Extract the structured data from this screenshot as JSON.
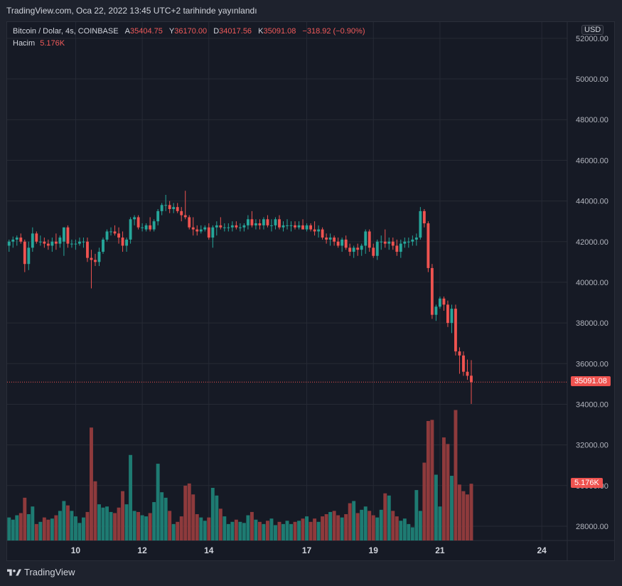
{
  "header": {
    "published": "TradingView.com, Oca 22, 2022 13:45 UTC+2 tarihinde yayınlandı"
  },
  "legend": {
    "symbol": "Bitcoin / Dolar, 4s, COINBASE",
    "open_label": "A",
    "open_value": "35404.75",
    "high_label": "Y",
    "high_value": "36170.00",
    "low_label": "D",
    "low_value": "34017.56",
    "close_label": "K",
    "close_value": "35091.08",
    "change": "−318.92 (−0.90%)",
    "volume_label": "Hacim",
    "volume_value": "5.176K"
  },
  "price_axis": {
    "currency": "USD",
    "last_price_label": "35091.08",
    "last_volume_label": "5.176K"
  },
  "footer": {
    "brand": "TradingView"
  },
  "colors": {
    "up": "#26a69a",
    "down": "#ef5350",
    "up_volume": "#1e7b72",
    "down_volume": "#8e3a3c",
    "background": "#161a25",
    "grid": "#262a35",
    "axis_text": "#b2b5be"
  },
  "chart_data": {
    "type": "candlestick",
    "symbol": "BTC/USD",
    "timeframe": "4s",
    "y_ticks": [
      "28000.00",
      "30000.00",
      "32000.00",
      "34000.00",
      "36000.00",
      "38000.00",
      "40000.00",
      "42000.00",
      "44000.00",
      "46000.00",
      "48000.00",
      "50000.00",
      "52000.00"
    ],
    "ylim": [
      27300,
      52800
    ],
    "x_ticks": [
      {
        "label": "10",
        "bar": 17
      },
      {
        "label": "12",
        "bar": 34
      },
      {
        "label": "14",
        "bar": 51
      },
      {
        "label": "17",
        "bar": 76
      },
      {
        "label": "19",
        "bar": 93
      },
      {
        "label": "21",
        "bar": 110
      },
      {
        "label": "24",
        "bar": 136
      }
    ],
    "total_bar_slots": 143,
    "last_price": 35091.08,
    "volume_max": 12000,
    "candles": [
      {
        "o": 41800,
        "h": 42100,
        "l": 41500,
        "c": 42000,
        "v": 2100
      },
      {
        "o": 42000,
        "h": 42250,
        "l": 41700,
        "c": 42100,
        "v": 1900
      },
      {
        "o": 42100,
        "h": 42300,
        "l": 41800,
        "c": 42200,
        "v": 2300
      },
      {
        "o": 42200,
        "h": 42400,
        "l": 41900,
        "c": 42000,
        "v": 2500
      },
      {
        "o": 42000,
        "h": 42100,
        "l": 40500,
        "c": 40900,
        "v": 3900
      },
      {
        "o": 40900,
        "h": 42000,
        "l": 40600,
        "c": 41700,
        "v": 2400
      },
      {
        "o": 41700,
        "h": 42700,
        "l": 41500,
        "c": 42400,
        "v": 3100
      },
      {
        "o": 42400,
        "h": 42500,
        "l": 41900,
        "c": 42000,
        "v": 1500
      },
      {
        "o": 42000,
        "h": 42300,
        "l": 41800,
        "c": 42000,
        "v": 1700
      },
      {
        "o": 42000,
        "h": 42200,
        "l": 41700,
        "c": 41900,
        "v": 2100
      },
      {
        "o": 41900,
        "h": 42100,
        "l": 41600,
        "c": 41800,
        "v": 1900
      },
      {
        "o": 41800,
        "h": 42200,
        "l": 41500,
        "c": 42000,
        "v": 2000
      },
      {
        "o": 42000,
        "h": 42400,
        "l": 41600,
        "c": 41900,
        "v": 2300
      },
      {
        "o": 41900,
        "h": 42300,
        "l": 41700,
        "c": 42200,
        "v": 2700
      },
      {
        "o": 42000,
        "h": 42700,
        "l": 41300,
        "c": 42700,
        "v": 3600
      },
      {
        "o": 42700,
        "h": 42800,
        "l": 41700,
        "c": 41900,
        "v": 3200
      },
      {
        "o": 41900,
        "h": 42100,
        "l": 41700,
        "c": 41900,
        "v": 2700
      },
      {
        "o": 41900,
        "h": 42100,
        "l": 41600,
        "c": 41900,
        "v": 2200
      },
      {
        "o": 41900,
        "h": 42200,
        "l": 41800,
        "c": 42000,
        "v": 1600
      },
      {
        "o": 42000,
        "h": 42200,
        "l": 41700,
        "c": 42000,
        "v": 2100
      },
      {
        "o": 42000,
        "h": 42200,
        "l": 41000,
        "c": 41200,
        "v": 2600
      },
      {
        "o": 41200,
        "h": 41600,
        "l": 39700,
        "c": 41100,
        "v": 10300
      },
      {
        "o": 41100,
        "h": 41400,
        "l": 40800,
        "c": 41000,
        "v": 5400
      },
      {
        "o": 41000,
        "h": 41700,
        "l": 40800,
        "c": 41500,
        "v": 3300
      },
      {
        "o": 41500,
        "h": 42200,
        "l": 41400,
        "c": 42100,
        "v": 3000
      },
      {
        "o": 42100,
        "h": 42600,
        "l": 42000,
        "c": 42500,
        "v": 3100
      },
      {
        "o": 42500,
        "h": 42700,
        "l": 42300,
        "c": 42500,
        "v": 2600
      },
      {
        "o": 42500,
        "h": 42800,
        "l": 42300,
        "c": 42400,
        "v": 2500
      },
      {
        "o": 42400,
        "h": 42700,
        "l": 41900,
        "c": 42200,
        "v": 3000
      },
      {
        "o": 42200,
        "h": 42500,
        "l": 41500,
        "c": 41800,
        "v": 4500
      },
      {
        "o": 41800,
        "h": 42200,
        "l": 41500,
        "c": 42100,
        "v": 3300
      },
      {
        "o": 42100,
        "h": 43200,
        "l": 41900,
        "c": 43100,
        "v": 7800
      },
      {
        "o": 43100,
        "h": 43300,
        "l": 42800,
        "c": 43200,
        "v": 2700
      },
      {
        "o": 43200,
        "h": 43300,
        "l": 42600,
        "c": 42700,
        "v": 2600
      },
      {
        "o": 42700,
        "h": 42900,
        "l": 42500,
        "c": 42700,
        "v": 2300
      },
      {
        "o": 42600,
        "h": 42900,
        "l": 42500,
        "c": 42800,
        "v": 2200
      },
      {
        "o": 42800,
        "h": 43200,
        "l": 42500,
        "c": 42600,
        "v": 2500
      },
      {
        "o": 42600,
        "h": 43100,
        "l": 42500,
        "c": 43000,
        "v": 3500
      },
      {
        "o": 43000,
        "h": 43600,
        "l": 42800,
        "c": 43500,
        "v": 7000
      },
      {
        "o": 43500,
        "h": 43900,
        "l": 43300,
        "c": 43800,
        "v": 4400
      },
      {
        "o": 43800,
        "h": 44300,
        "l": 43500,
        "c": 43800,
        "v": 3900
      },
      {
        "o": 43800,
        "h": 44000,
        "l": 43400,
        "c": 43600,
        "v": 2700
      },
      {
        "o": 43600,
        "h": 43900,
        "l": 43400,
        "c": 43700,
        "v": 1500
      },
      {
        "o": 43700,
        "h": 43900,
        "l": 43400,
        "c": 43500,
        "v": 1700
      },
      {
        "o": 43500,
        "h": 43700,
        "l": 43000,
        "c": 43300,
        "v": 2200
      },
      {
        "o": 43300,
        "h": 44500,
        "l": 43100,
        "c": 43200,
        "v": 5000
      },
      {
        "o": 43200,
        "h": 43300,
        "l": 42600,
        "c": 42700,
        "v": 5200
      },
      {
        "o": 42700,
        "h": 43200,
        "l": 42300,
        "c": 42600,
        "v": 4200
      },
      {
        "o": 42600,
        "h": 42800,
        "l": 42300,
        "c": 42500,
        "v": 2400
      },
      {
        "o": 42500,
        "h": 42800,
        "l": 42400,
        "c": 42600,
        "v": 2100
      },
      {
        "o": 42600,
        "h": 42800,
        "l": 42500,
        "c": 42700,
        "v": 1800
      },
      {
        "o": 42700,
        "h": 42900,
        "l": 42100,
        "c": 42200,
        "v": 2100
      },
      {
        "o": 42200,
        "h": 42800,
        "l": 41700,
        "c": 42700,
        "v": 4800
      },
      {
        "o": 42700,
        "h": 43000,
        "l": 42300,
        "c": 42800,
        "v": 4100
      },
      {
        "o": 42800,
        "h": 43200,
        "l": 42600,
        "c": 42700,
        "v": 2900
      },
      {
        "o": 42700,
        "h": 42900,
        "l": 42500,
        "c": 42700,
        "v": 2200
      },
      {
        "o": 42700,
        "h": 42900,
        "l": 42500,
        "c": 42700,
        "v": 1500
      },
      {
        "o": 42700,
        "h": 43000,
        "l": 42500,
        "c": 42800,
        "v": 1700
      },
      {
        "o": 42800,
        "h": 43000,
        "l": 42600,
        "c": 42700,
        "v": 1900
      },
      {
        "o": 42700,
        "h": 42900,
        "l": 42500,
        "c": 42700,
        "v": 1700
      },
      {
        "o": 42700,
        "h": 42900,
        "l": 42500,
        "c": 42800,
        "v": 1600
      },
      {
        "o": 42800,
        "h": 43300,
        "l": 42600,
        "c": 43100,
        "v": 2300
      },
      {
        "o": 43100,
        "h": 43500,
        "l": 42700,
        "c": 42800,
        "v": 2600
      },
      {
        "o": 42800,
        "h": 43100,
        "l": 42600,
        "c": 42900,
        "v": 1900
      },
      {
        "o": 42900,
        "h": 43100,
        "l": 42600,
        "c": 42800,
        "v": 1700
      },
      {
        "o": 42800,
        "h": 43200,
        "l": 42600,
        "c": 43100,
        "v": 1500
      },
      {
        "o": 43100,
        "h": 43300,
        "l": 42700,
        "c": 42800,
        "v": 1800
      },
      {
        "o": 42800,
        "h": 43100,
        "l": 42500,
        "c": 42800,
        "v": 2000
      },
      {
        "o": 42800,
        "h": 43200,
        "l": 42600,
        "c": 43100,
        "v": 1400
      },
      {
        "o": 43100,
        "h": 43300,
        "l": 42600,
        "c": 42700,
        "v": 1700
      },
      {
        "o": 42700,
        "h": 43000,
        "l": 42500,
        "c": 42800,
        "v": 1500
      },
      {
        "o": 42800,
        "h": 43100,
        "l": 42600,
        "c": 42800,
        "v": 1800
      },
      {
        "o": 42800,
        "h": 43000,
        "l": 42500,
        "c": 42800,
        "v": 1500
      },
      {
        "o": 42800,
        "h": 43000,
        "l": 42600,
        "c": 42700,
        "v": 1700
      },
      {
        "o": 42700,
        "h": 43000,
        "l": 42600,
        "c": 42800,
        "v": 1800
      },
      {
        "o": 42800,
        "h": 43100,
        "l": 42600,
        "c": 42600,
        "v": 2000
      },
      {
        "o": 42600,
        "h": 42900,
        "l": 42500,
        "c": 42800,
        "v": 2200
      },
      {
        "o": 42800,
        "h": 42900,
        "l": 42500,
        "c": 42600,
        "v": 1700
      },
      {
        "o": 42600,
        "h": 43000,
        "l": 42300,
        "c": 42500,
        "v": 2000
      },
      {
        "o": 42500,
        "h": 42800,
        "l": 42200,
        "c": 42600,
        "v": 1700
      },
      {
        "o": 42600,
        "h": 42700,
        "l": 42100,
        "c": 42200,
        "v": 2200
      },
      {
        "o": 42200,
        "h": 42400,
        "l": 41900,
        "c": 42100,
        "v": 2400
      },
      {
        "o": 42100,
        "h": 42400,
        "l": 41800,
        "c": 42200,
        "v": 2600
      },
      {
        "o": 42200,
        "h": 42300,
        "l": 41800,
        "c": 42000,
        "v": 2700
      },
      {
        "o": 42000,
        "h": 42200,
        "l": 41700,
        "c": 41800,
        "v": 2300
      },
      {
        "o": 41800,
        "h": 42200,
        "l": 41500,
        "c": 42100,
        "v": 2100
      },
      {
        "o": 42100,
        "h": 42300,
        "l": 41600,
        "c": 41700,
        "v": 2400
      },
      {
        "o": 41700,
        "h": 41900,
        "l": 41300,
        "c": 41500,
        "v": 3400
      },
      {
        "o": 41500,
        "h": 41800,
        "l": 41200,
        "c": 41700,
        "v": 3600
      },
      {
        "o": 41700,
        "h": 41900,
        "l": 41300,
        "c": 41600,
        "v": 2500
      },
      {
        "o": 41600,
        "h": 41900,
        "l": 41300,
        "c": 41800,
        "v": 2800
      },
      {
        "o": 41800,
        "h": 42600,
        "l": 41400,
        "c": 42500,
        "v": 3100
      },
      {
        "o": 42500,
        "h": 42600,
        "l": 41500,
        "c": 41700,
        "v": 2700
      },
      {
        "o": 41700,
        "h": 41900,
        "l": 41200,
        "c": 41300,
        "v": 2300
      },
      {
        "o": 41300,
        "h": 42100,
        "l": 41100,
        "c": 42000,
        "v": 2100
      },
      {
        "o": 42000,
        "h": 42300,
        "l": 41600,
        "c": 42000,
        "v": 2800
      },
      {
        "o": 42000,
        "h": 42600,
        "l": 41700,
        "c": 41900,
        "v": 4300
      },
      {
        "o": 41900,
        "h": 42200,
        "l": 41600,
        "c": 42000,
        "v": 4100
      },
      {
        "o": 42000,
        "h": 42200,
        "l": 41600,
        "c": 41800,
        "v": 2700
      },
      {
        "o": 41800,
        "h": 42100,
        "l": 41300,
        "c": 41500,
        "v": 2200
      },
      {
        "o": 41500,
        "h": 42100,
        "l": 41200,
        "c": 41900,
        "v": 1800
      },
      {
        "o": 41900,
        "h": 42200,
        "l": 41700,
        "c": 42000,
        "v": 2000
      },
      {
        "o": 42000,
        "h": 42200,
        "l": 41700,
        "c": 42000,
        "v": 1500
      },
      {
        "o": 42000,
        "h": 42300,
        "l": 41800,
        "c": 42100,
        "v": 1200
      },
      {
        "o": 42100,
        "h": 42400,
        "l": 41800,
        "c": 42200,
        "v": 4600
      },
      {
        "o": 42200,
        "h": 43700,
        "l": 42100,
        "c": 43500,
        "v": 2700
      },
      {
        "o": 43500,
        "h": 43600,
        "l": 42700,
        "c": 42900,
        "v": 7100
      },
      {
        "o": 42900,
        "h": 43000,
        "l": 40500,
        "c": 40700,
        "v": 10900
      },
      {
        "o": 40700,
        "h": 40900,
        "l": 38200,
        "c": 38400,
        "v": 11000
      },
      {
        "o": 38400,
        "h": 38900,
        "l": 38100,
        "c": 38800,
        "v": 6000
      },
      {
        "o": 38800,
        "h": 39300,
        "l": 38700,
        "c": 39200,
        "v": 3100
      },
      {
        "o": 39200,
        "h": 39300,
        "l": 38600,
        "c": 38900,
        "v": 9400
      },
      {
        "o": 38900,
        "h": 39100,
        "l": 37800,
        "c": 38000,
        "v": 8800
      },
      {
        "o": 38000,
        "h": 38900,
        "l": 37500,
        "c": 38700,
        "v": 5900
      },
      {
        "o": 38700,
        "h": 38900,
        "l": 36400,
        "c": 36600,
        "v": 11900
      },
      {
        "o": 36600,
        "h": 36800,
        "l": 35500,
        "c": 36400,
        "v": 5100
      },
      {
        "o": 36400,
        "h": 36600,
        "l": 35400,
        "c": 35600,
        "v": 4500
      },
      {
        "o": 35600,
        "h": 36200,
        "l": 35200,
        "c": 35400,
        "v": 4200
      },
      {
        "o": 35404.75,
        "h": 36170,
        "l": 34017.56,
        "c": 35091.08,
        "v": 5176
      }
    ]
  }
}
